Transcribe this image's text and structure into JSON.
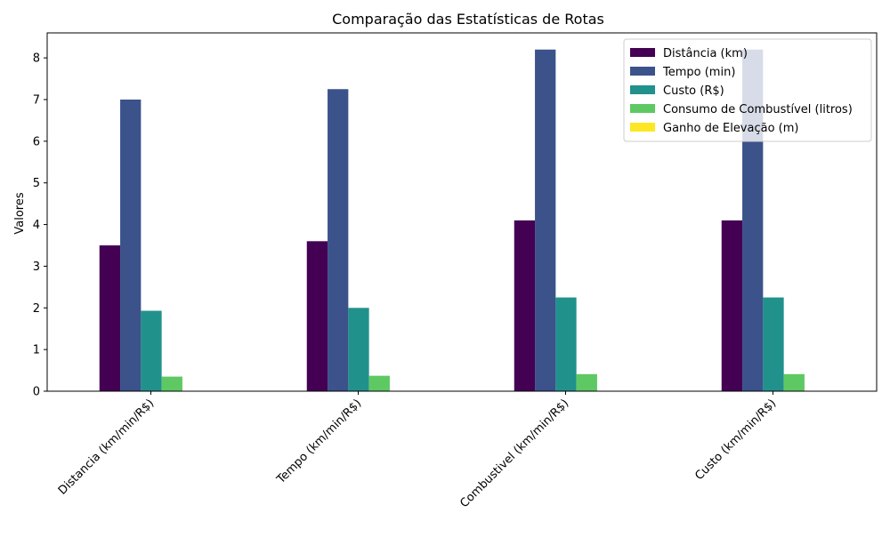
{
  "chart_data": {
    "type": "bar",
    "title": "Comparação das Estatísticas de Rotas",
    "xlabel": "",
    "ylabel": "Valores",
    "ylim": [
      0,
      8.6
    ],
    "yticks": [
      0,
      1,
      2,
      3,
      4,
      5,
      6,
      7,
      8
    ],
    "categories": [
      "Distancia (km/min/R$)",
      "Tempo (km/min/R$)",
      "Combustivel (km/min/R$)",
      "Custo (km/min/R$)"
    ],
    "series": [
      {
        "name": "Distância (km)",
        "color": "#440154",
        "values": [
          3.5,
          3.6,
          4.1,
          4.1
        ]
      },
      {
        "name": "Tempo (min)",
        "color": "#3b528b",
        "values": [
          7.0,
          7.25,
          8.2,
          8.2
        ]
      },
      {
        "name": "Custo (R$)",
        "color": "#21918c",
        "values": [
          1.93,
          2.0,
          2.25,
          2.25
        ]
      },
      {
        "name": "Consumo de Combustível (litros)",
        "color": "#5ec962",
        "values": [
          0.35,
          0.37,
          0.41,
          0.41
        ]
      },
      {
        "name": "Ganho de Elevação (m)",
        "color": "#fde725",
        "values": [
          0,
          0,
          0,
          0
        ]
      }
    ],
    "legend_position": "top-right",
    "grid": false
  }
}
